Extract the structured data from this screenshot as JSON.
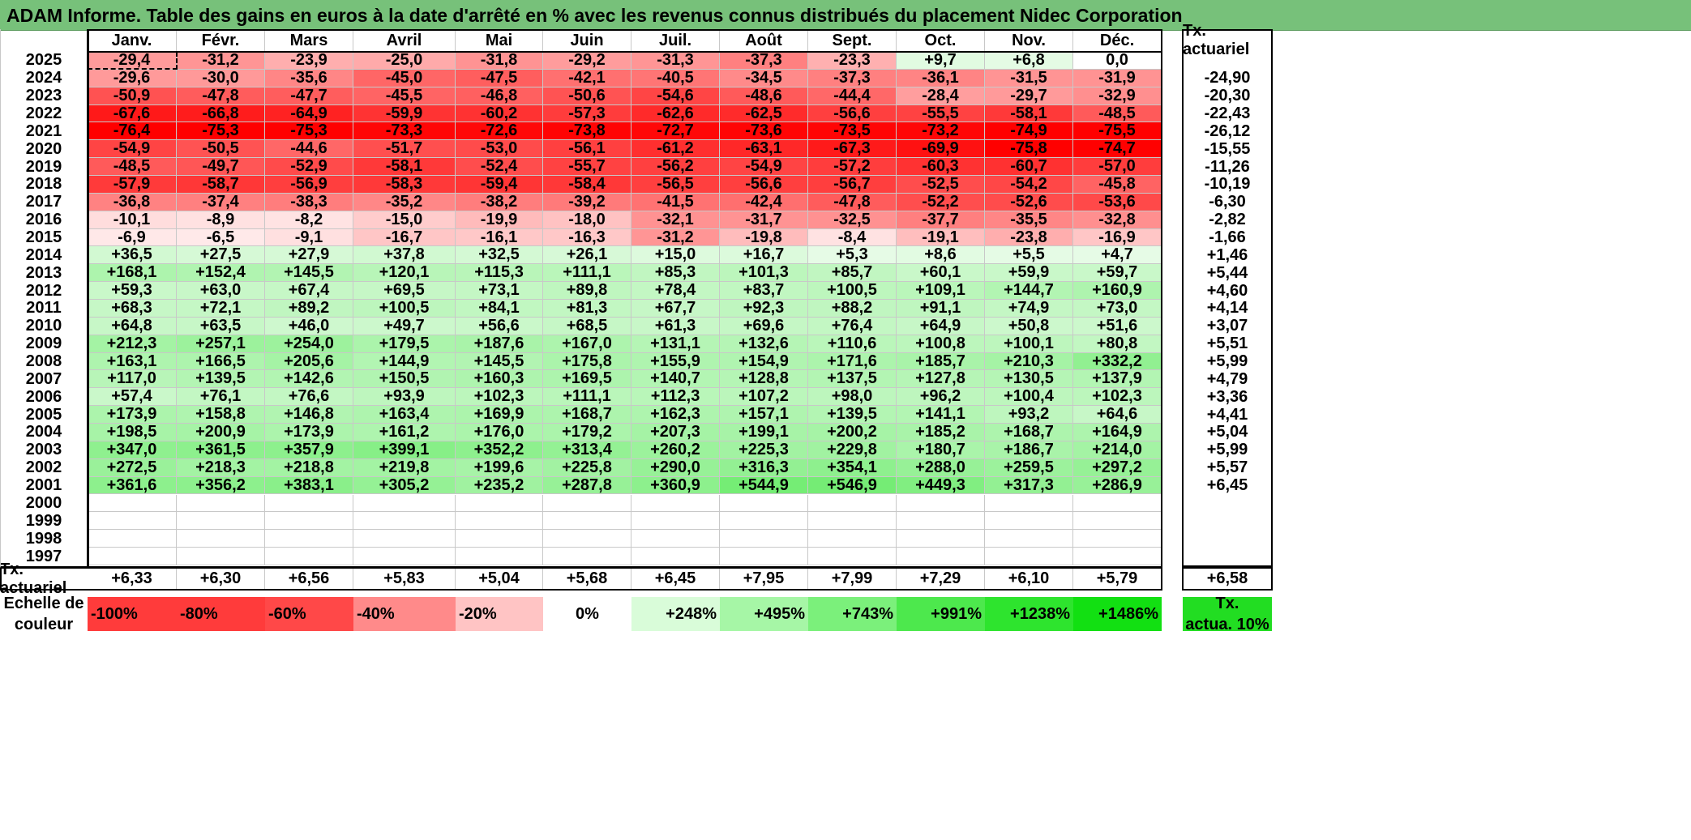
{
  "title": "ADAM Informe. Table des gains en euros à la date d'arrêté en % avec les revenus connus distribués du placement Nidec Corporation",
  "months": [
    "Janv.",
    "Févr.",
    "Mars",
    "Avril",
    "Mai",
    "Juin",
    "Juil.",
    "Août",
    "Sept.",
    "Oct.",
    "Nov.",
    "Déc."
  ],
  "ann_header": "Tx. actuariel",
  "rows": [
    {
      "year": "2025",
      "values": [
        "-29,4",
        "-31,2",
        "-23,9",
        "-25,0",
        "-31,8",
        "-29,2",
        "-31,3",
        "-37,3",
        "-23,3",
        "+9,7",
        "+6,8",
        "0,0"
      ],
      "ann": ""
    },
    {
      "year": "2024",
      "values": [
        "-29,6",
        "-30,0",
        "-35,6",
        "-45,0",
        "-47,5",
        "-42,1",
        "-40,5",
        "-34,5",
        "-37,3",
        "-36,1",
        "-31,5",
        "-31,9"
      ],
      "ann": "-24,90"
    },
    {
      "year": "2023",
      "values": [
        "-50,9",
        "-47,8",
        "-47,7",
        "-45,5",
        "-46,8",
        "-50,6",
        "-54,6",
        "-48,6",
        "-44,4",
        "-28,4",
        "-29,7",
        "-32,9"
      ],
      "ann": "-20,30"
    },
    {
      "year": "2022",
      "values": [
        "-67,6",
        "-66,8",
        "-64,9",
        "-59,9",
        "-60,2",
        "-57,3",
        "-62,6",
        "-62,5",
        "-56,6",
        "-55,5",
        "-58,1",
        "-48,5"
      ],
      "ann": "-22,43"
    },
    {
      "year": "2021",
      "values": [
        "-76,4",
        "-75,3",
        "-75,3",
        "-73,3",
        "-72,6",
        "-73,8",
        "-72,7",
        "-73,6",
        "-73,5",
        "-73,2",
        "-74,9",
        "-75,5"
      ],
      "ann": "-26,12"
    },
    {
      "year": "2020",
      "values": [
        "-54,9",
        "-50,5",
        "-44,6",
        "-51,7",
        "-53,0",
        "-56,1",
        "-61,2",
        "-63,1",
        "-67,3",
        "-69,9",
        "-75,8",
        "-74,7"
      ],
      "ann": "-15,55"
    },
    {
      "year": "2019",
      "values": [
        "-48,5",
        "-49,7",
        "-52,9",
        "-58,1",
        "-52,4",
        "-55,7",
        "-56,2",
        "-54,9",
        "-57,2",
        "-60,3",
        "-60,7",
        "-57,0"
      ],
      "ann": "-11,26"
    },
    {
      "year": "2018",
      "values": [
        "-57,9",
        "-58,7",
        "-56,9",
        "-58,3",
        "-59,4",
        "-58,4",
        "-56,5",
        "-56,6",
        "-56,7",
        "-52,5",
        "-54,2",
        "-45,8"
      ],
      "ann": "-10,19"
    },
    {
      "year": "2017",
      "values": [
        "-36,8",
        "-37,4",
        "-38,3",
        "-35,2",
        "-38,2",
        "-39,2",
        "-41,5",
        "-42,4",
        "-47,8",
        "-52,2",
        "-52,6",
        "-53,6"
      ],
      "ann": "-6,30"
    },
    {
      "year": "2016",
      "values": [
        "-10,1",
        "-8,9",
        "-8,2",
        "-15,0",
        "-19,9",
        "-18,0",
        "-32,1",
        "-31,7",
        "-32,5",
        "-37,7",
        "-35,5",
        "-32,8"
      ],
      "ann": "-2,82"
    },
    {
      "year": "2015",
      "values": [
        "-6,9",
        "-6,5",
        "-9,1",
        "-16,7",
        "-16,1",
        "-16,3",
        "-31,2",
        "-19,8",
        "-8,4",
        "-19,1",
        "-23,8",
        "-16,9"
      ],
      "ann": "-1,66"
    },
    {
      "year": "2014",
      "values": [
        "+36,5",
        "+27,5",
        "+27,9",
        "+37,8",
        "+32,5",
        "+26,1",
        "+15,0",
        "+16,7",
        "+5,3",
        "+8,6",
        "+5,5",
        "+4,7"
      ],
      "ann": "+1,46"
    },
    {
      "year": "2013",
      "values": [
        "+168,1",
        "+152,4",
        "+145,5",
        "+120,1",
        "+115,3",
        "+111,1",
        "+85,3",
        "+101,3",
        "+85,7",
        "+60,1",
        "+59,9",
        "+59,7"
      ],
      "ann": "+5,44"
    },
    {
      "year": "2012",
      "values": [
        "+59,3",
        "+63,0",
        "+67,4",
        "+69,5",
        "+73,1",
        "+89,8",
        "+78,4",
        "+83,7",
        "+100,5",
        "+109,1",
        "+144,7",
        "+160,9"
      ],
      "ann": "+4,60"
    },
    {
      "year": "2011",
      "values": [
        "+68,3",
        "+72,1",
        "+89,2",
        "+100,5",
        "+84,1",
        "+81,3",
        "+67,7",
        "+92,3",
        "+88,2",
        "+91,1",
        "+74,9",
        "+73,0"
      ],
      "ann": "+4,14"
    },
    {
      "year": "2010",
      "values": [
        "+64,8",
        "+63,5",
        "+46,0",
        "+49,7",
        "+56,6",
        "+68,5",
        "+61,3",
        "+69,6",
        "+76,4",
        "+64,9",
        "+50,8",
        "+51,6"
      ],
      "ann": "+3,07"
    },
    {
      "year": "2009",
      "values": [
        "+212,3",
        "+257,1",
        "+254,0",
        "+179,5",
        "+187,6",
        "+167,0",
        "+131,1",
        "+132,6",
        "+110,6",
        "+100,8",
        "+100,1",
        "+80,8"
      ],
      "ann": "+5,51"
    },
    {
      "year": "2008",
      "values": [
        "+163,1",
        "+166,5",
        "+205,6",
        "+144,9",
        "+145,5",
        "+175,8",
        "+155,9",
        "+154,9",
        "+171,6",
        "+185,7",
        "+210,3",
        "+332,2"
      ],
      "ann": "+5,99"
    },
    {
      "year": "2007",
      "values": [
        "+117,0",
        "+139,5",
        "+142,6",
        "+150,5",
        "+160,3",
        "+169,5",
        "+140,7",
        "+128,8",
        "+137,5",
        "+127,8",
        "+130,5",
        "+137,9"
      ],
      "ann": "+4,79"
    },
    {
      "year": "2006",
      "values": [
        "+57,4",
        "+76,1",
        "+76,6",
        "+93,9",
        "+102,3",
        "+111,1",
        "+112,3",
        "+107,2",
        "+98,0",
        "+96,2",
        "+100,4",
        "+102,3"
      ],
      "ann": "+3,36"
    },
    {
      "year": "2005",
      "values": [
        "+173,9",
        "+158,8",
        "+146,8",
        "+163,4",
        "+169,9",
        "+168,7",
        "+162,3",
        "+157,1",
        "+139,5",
        "+141,1",
        "+93,2",
        "+64,6"
      ],
      "ann": "+4,41"
    },
    {
      "year": "2004",
      "values": [
        "+198,5",
        "+200,9",
        "+173,9",
        "+161,2",
        "+176,0",
        "+179,2",
        "+207,3",
        "+199,1",
        "+200,2",
        "+185,2",
        "+168,7",
        "+164,9"
      ],
      "ann": "+5,04"
    },
    {
      "year": "2003",
      "values": [
        "+347,0",
        "+361,5",
        "+357,9",
        "+399,1",
        "+352,2",
        "+313,4",
        "+260,2",
        "+225,3",
        "+229,8",
        "+180,7",
        "+186,7",
        "+214,0"
      ],
      "ann": "+5,99"
    },
    {
      "year": "2002",
      "values": [
        "+272,5",
        "+218,3",
        "+218,8",
        "+219,8",
        "+199,6",
        "+225,8",
        "+290,0",
        "+316,3",
        "+354,1",
        "+288,0",
        "+259,5",
        "+297,2"
      ],
      "ann": "+5,57"
    },
    {
      "year": "2001",
      "values": [
        "+361,6",
        "+356,2",
        "+383,1",
        "+305,2",
        "+235,2",
        "+287,8",
        "+360,9",
        "+544,9",
        "+546,9",
        "+449,3",
        "+317,3",
        "+286,9"
      ],
      "ann": "+6,45"
    },
    {
      "year": "2000",
      "values": [
        "",
        "",
        "",
        "",
        "",
        "",
        "",
        "",
        "",
        "",
        "",
        ""
      ],
      "ann": ""
    },
    {
      "year": "1999",
      "values": [
        "",
        "",
        "",
        "",
        "",
        "",
        "",
        "",
        "",
        "",
        "",
        ""
      ],
      "ann": ""
    },
    {
      "year": "1998",
      "values": [
        "",
        "",
        "",
        "",
        "",
        "",
        "",
        "",
        "",
        "",
        "",
        ""
      ],
      "ann": ""
    },
    {
      "year": "1997",
      "values": [
        "",
        "",
        "",
        "",
        "",
        "",
        "",
        "",
        "",
        "",
        "",
        ""
      ],
      "ann": ""
    }
  ],
  "tx_row": {
    "label": "Tx. actuariel",
    "values": [
      "+6,33",
      "+6,30",
      "+6,56",
      "+5,83",
      "+5,04",
      "+5,68",
      "+6,45",
      "+7,95",
      "+7,99",
      "+7,29",
      "+6,10",
      "+5,79"
    ],
    "ann": "+6,58"
  },
  "scale": {
    "label_line1": "Echelle de",
    "label_line2": "couleur",
    "items": [
      {
        "text": "-100%",
        "color": "#ff3b3b",
        "align": "left"
      },
      {
        "text": "-80%",
        "color": "#ff3b3b",
        "align": "left"
      },
      {
        "text": "-60%",
        "color": "#ff4848",
        "align": "left"
      },
      {
        "text": "-40%",
        "color": "#ff8a8a",
        "align": "left"
      },
      {
        "text": "-20%",
        "color": "#ffc4c4",
        "align": "left"
      },
      {
        "text": "0%",
        "color": "#ffffff",
        "align": "center"
      },
      {
        "text": "+248%",
        "color": "#d9fcd9",
        "align": "right"
      },
      {
        "text": "+495%",
        "color": "#a6f6a6",
        "align": "right"
      },
      {
        "text": "+743%",
        "color": "#7bf07b",
        "align": "right"
      },
      {
        "text": "+991%",
        "color": "#4de84d",
        "align": "right"
      },
      {
        "text": "+1238%",
        "color": "#2ee42e",
        "align": "right"
      },
      {
        "text": "+1486%",
        "color": "#12e012",
        "align": "right"
      }
    ],
    "ann_line1": "Tx.",
    "ann_line2": "actua. 10%",
    "ann_color": "#22dd22"
  },
  "colors": {
    "title_bg": "#77c17a",
    "negative_max": "#ff0000",
    "positive_max": "#00dd00"
  }
}
